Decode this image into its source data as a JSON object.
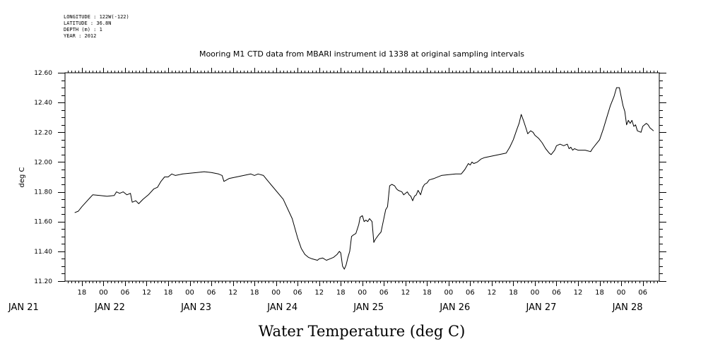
{
  "header": {
    "longitude": "LONGITUDE : 122W(-122)",
    "latitude": "LATITUDE : 36.8N",
    "depth": "DEPTH (m) : 1",
    "year": "YEAR : 2012"
  },
  "chart_data": {
    "type": "line",
    "title": "Mooring M1 CTD data from MBARI instrument id 1338 at original sampling intervals",
    "xlabel": "Water Temperature (deg C)",
    "ylabel": "deg C",
    "ylim": [
      11.2,
      12.6
    ],
    "yticks": [
      "11.20",
      "11.40",
      "11.60",
      "11.80",
      "12.00",
      "12.20",
      "12.40",
      "12.60"
    ],
    "hour_ticks": [
      {
        "h": 18,
        "label": "18"
      },
      {
        "h": 24,
        "label": "00"
      },
      {
        "h": 30,
        "label": "06"
      },
      {
        "h": 36,
        "label": "12"
      },
      {
        "h": 42,
        "label": "18"
      },
      {
        "h": 48,
        "label": "00"
      },
      {
        "h": 54,
        "label": "06"
      },
      {
        "h": 60,
        "label": "12"
      },
      {
        "h": 66,
        "label": "18"
      },
      {
        "h": 72,
        "label": "00"
      },
      {
        "h": 78,
        "label": "06"
      },
      {
        "h": 84,
        "label": "12"
      },
      {
        "h": 90,
        "label": "18"
      },
      {
        "h": 96,
        "label": "00"
      },
      {
        "h": 102,
        "label": "06"
      },
      {
        "h": 108,
        "label": "12"
      },
      {
        "h": 114,
        "label": "18"
      },
      {
        "h": 120,
        "label": "00"
      },
      {
        "h": 126,
        "label": "06"
      },
      {
        "h": 132,
        "label": "12"
      },
      {
        "h": 138,
        "label": "18"
      },
      {
        "h": 144,
        "label": "00"
      },
      {
        "h": 150,
        "label": "06"
      },
      {
        "h": 156,
        "label": "12"
      },
      {
        "h": 162,
        "label": "18"
      },
      {
        "h": 168,
        "label": "00"
      },
      {
        "h": 174,
        "label": "06"
      }
    ],
    "day_labels": [
      {
        "h": 0,
        "label": "JAN 21"
      },
      {
        "h": 24,
        "label": "JAN 22"
      },
      {
        "h": 48,
        "label": "JAN 23"
      },
      {
        "h": 72,
        "label": "JAN 24"
      },
      {
        "h": 96,
        "label": "JAN 25"
      },
      {
        "h": 120,
        "label": "JAN 26"
      },
      {
        "h": 144,
        "label": "JAN 27"
      },
      {
        "h": 168,
        "label": "JAN 28"
      }
    ],
    "x_unit": "hours since 2012-01-21 00:00",
    "series": [
      {
        "name": "Water Temperature",
        "points": [
          [
            16,
            11.66
          ],
          [
            17,
            11.67
          ],
          [
            18,
            11.7
          ],
          [
            19.5,
            11.74
          ],
          [
            21,
            11.78
          ],
          [
            23,
            11.775
          ],
          [
            25,
            11.77
          ],
          [
            27,
            11.775
          ],
          [
            27.6,
            11.8
          ],
          [
            28.5,
            11.79
          ],
          [
            29.5,
            11.8
          ],
          [
            30.5,
            11.78
          ],
          [
            31.5,
            11.79
          ],
          [
            32,
            11.73
          ],
          [
            33,
            11.74
          ],
          [
            33.8,
            11.72
          ],
          [
            35,
            11.75
          ],
          [
            36.5,
            11.78
          ],
          [
            38,
            11.82
          ],
          [
            39,
            11.83
          ],
          [
            40,
            11.87
          ],
          [
            41,
            11.9
          ],
          [
            42,
            11.9
          ],
          [
            43,
            11.92
          ],
          [
            44,
            11.91
          ],
          [
            46,
            11.92
          ],
          [
            48,
            11.925
          ],
          [
            50,
            11.93
          ],
          [
            52,
            11.935
          ],
          [
            54,
            11.93
          ],
          [
            56,
            11.92
          ],
          [
            57,
            11.91
          ],
          [
            57.5,
            11.87
          ],
          [
            59,
            11.89
          ],
          [
            61,
            11.9
          ],
          [
            63,
            11.91
          ],
          [
            65,
            11.92
          ],
          [
            66,
            11.91
          ],
          [
            67,
            11.92
          ],
          [
            68.5,
            11.91
          ],
          [
            69.5,
            11.88
          ],
          [
            74,
            11.75
          ],
          [
            76.5,
            11.62
          ],
          [
            78,
            11.49
          ],
          [
            79,
            11.42
          ],
          [
            80,
            11.38
          ],
          [
            81,
            11.36
          ],
          [
            82,
            11.35
          ],
          [
            83.5,
            11.34
          ],
          [
            84,
            11.35
          ],
          [
            85,
            11.355
          ],
          [
            86,
            11.34
          ],
          [
            87,
            11.35
          ],
          [
            88,
            11.36
          ],
          [
            89,
            11.38
          ],
          [
            89.6,
            11.4
          ],
          [
            90,
            11.39
          ],
          [
            90.5,
            11.3
          ],
          [
            91,
            11.28
          ],
          [
            91.5,
            11.31
          ],
          [
            92,
            11.36
          ],
          [
            92.5,
            11.4
          ],
          [
            93,
            11.5
          ],
          [
            93.5,
            11.51
          ],
          [
            94.2,
            11.52
          ],
          [
            95,
            11.58
          ],
          [
            95.4,
            11.63
          ],
          [
            96,
            11.64
          ],
          [
            96.5,
            11.6
          ],
          [
            97,
            11.61
          ],
          [
            97.5,
            11.6
          ],
          [
            98,
            11.62
          ],
          [
            98.7,
            11.6
          ],
          [
            99.2,
            11.46
          ],
          [
            99.6,
            11.48
          ],
          [
            100.5,
            11.51
          ],
          [
            101.2,
            11.53
          ],
          [
            101.8,
            11.6
          ],
          [
            102.5,
            11.68
          ],
          [
            103,
            11.7
          ],
          [
            103.6,
            11.84
          ],
          [
            104.2,
            11.85
          ],
          [
            105,
            11.84
          ],
          [
            105.5,
            11.82
          ],
          [
            106,
            11.81
          ],
          [
            107,
            11.8
          ],
          [
            107.5,
            11.78
          ],
          [
            108,
            11.79
          ],
          [
            108.5,
            11.8
          ],
          [
            109,
            11.78
          ],
          [
            109.5,
            11.77
          ],
          [
            110,
            11.74
          ],
          [
            110.5,
            11.77
          ],
          [
            111,
            11.78
          ],
          [
            111.5,
            11.81
          ],
          [
            112.2,
            11.78
          ],
          [
            112.8,
            11.83
          ],
          [
            113.3,
            11.85
          ],
          [
            114,
            11.86
          ],
          [
            114.6,
            11.88
          ],
          [
            116,
            11.89
          ],
          [
            118,
            11.91
          ],
          [
            120,
            11.915
          ],
          [
            122,
            11.92
          ],
          [
            123.5,
            11.92
          ],
          [
            124.5,
            11.95
          ],
          [
            125,
            11.97
          ],
          [
            125.5,
            11.99
          ],
          [
            126,
            11.98
          ],
          [
            126.5,
            12.0
          ],
          [
            127,
            11.99
          ],
          [
            128,
            12.0
          ],
          [
            129,
            12.02
          ],
          [
            130,
            12.03
          ],
          [
            132,
            12.04
          ],
          [
            134,
            12.05
          ],
          [
            136,
            12.06
          ],
          [
            137,
            12.1
          ],
          [
            138,
            12.15
          ],
          [
            139,
            12.22
          ],
          [
            139.6,
            12.26
          ],
          [
            140.2,
            12.32
          ],
          [
            140.8,
            12.28
          ],
          [
            141.5,
            12.23
          ],
          [
            142,
            12.19
          ],
          [
            142.8,
            12.21
          ],
          [
            143.5,
            12.2
          ],
          [
            144,
            12.18
          ],
          [
            145,
            12.16
          ],
          [
            146,
            12.13
          ],
          [
            147,
            12.09
          ],
          [
            148,
            12.06
          ],
          [
            148.5,
            12.05
          ],
          [
            149.5,
            12.08
          ],
          [
            150,
            12.11
          ],
          [
            151,
            12.12
          ],
          [
            152,
            12.11
          ],
          [
            153,
            12.12
          ],
          [
            153.5,
            12.09
          ],
          [
            154,
            12.1
          ],
          [
            154.5,
            12.08
          ],
          [
            155,
            12.09
          ],
          [
            156,
            12.08
          ],
          [
            158,
            12.08
          ],
          [
            159.5,
            12.07
          ],
          [
            160,
            12.09
          ],
          [
            161,
            12.12
          ],
          [
            162,
            12.15
          ],
          [
            163,
            12.22
          ],
          [
            164,
            12.3
          ],
          [
            165,
            12.38
          ],
          [
            166,
            12.44
          ],
          [
            166.7,
            12.5
          ],
          [
            167.5,
            12.5
          ],
          [
            168.5,
            12.38
          ],
          [
            169,
            12.34
          ],
          [
            169.5,
            12.25
          ],
          [
            170,
            12.28
          ],
          [
            170.5,
            12.26
          ],
          [
            171,
            12.28
          ],
          [
            171.5,
            12.24
          ],
          [
            172,
            12.25
          ],
          [
            172.5,
            12.21
          ],
          [
            173.5,
            12.2
          ],
          [
            174,
            12.24
          ],
          [
            174.5,
            12.25
          ],
          [
            175,
            12.26
          ],
          [
            175.5,
            12.25
          ],
          [
            176,
            12.23
          ],
          [
            177,
            12.21
          ]
        ]
      }
    ]
  }
}
